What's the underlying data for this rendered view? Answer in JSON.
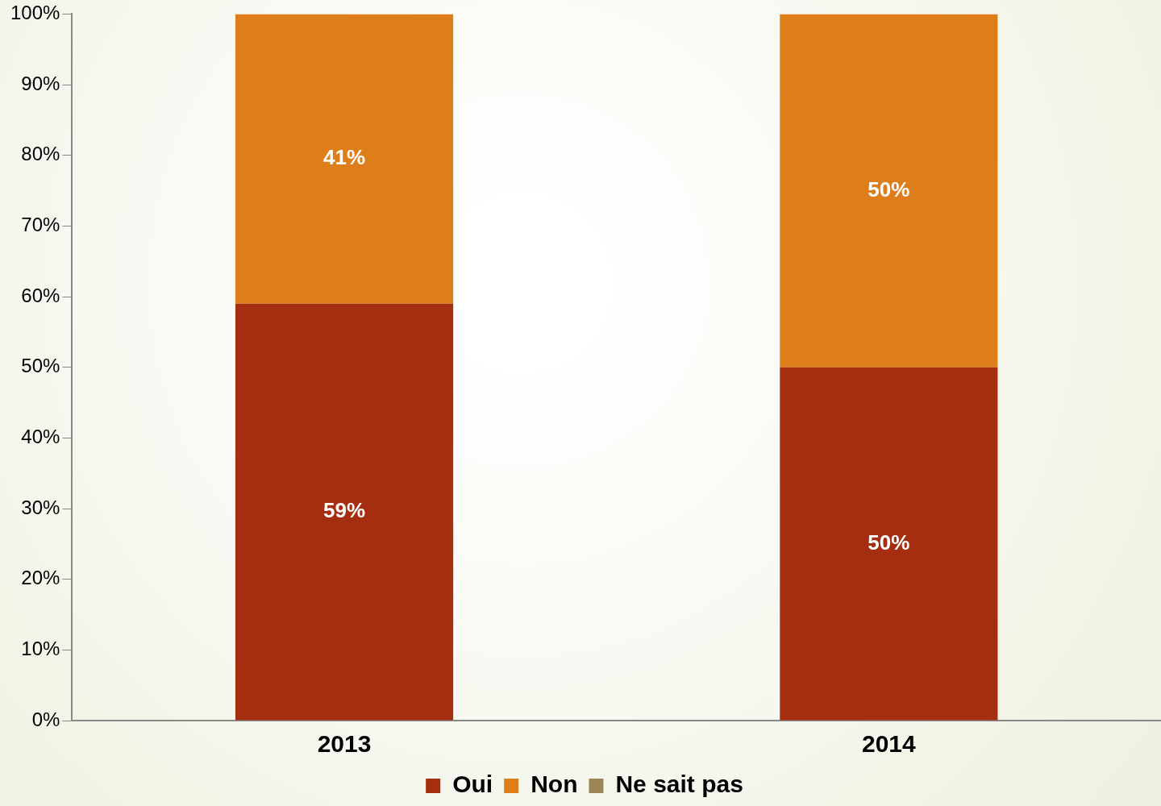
{
  "chart_data": {
    "type": "bar",
    "stacked": true,
    "categories": [
      "2013",
      "2014"
    ],
    "series": [
      {
        "name": "Oui",
        "color": "#a52e10",
        "values": [
          59,
          50
        ],
        "value_labels": [
          "59%",
          "50%"
        ]
      },
      {
        "name": "Non",
        "color": "#de7e1a",
        "values": [
          41,
          50
        ],
        "value_labels": [
          "41%",
          "50%"
        ]
      },
      {
        "name": "Ne sait pas",
        "color": "#9c8454",
        "values": [
          0,
          0
        ],
        "value_labels": [
          null,
          null
        ]
      }
    ],
    "ylim": [
      0,
      100
    ],
    "yticks": [
      {
        "value": 0,
        "label": "0%"
      },
      {
        "value": 10,
        "label": "10%"
      },
      {
        "value": 20,
        "label": "20%"
      },
      {
        "value": 30,
        "label": "30%"
      },
      {
        "value": 40,
        "label": "40%"
      },
      {
        "value": 50,
        "label": "50%"
      },
      {
        "value": 60,
        "label": "60%"
      },
      {
        "value": 70,
        "label": "70%"
      },
      {
        "value": 80,
        "label": "80%"
      },
      {
        "value": 90,
        "label": "90%"
      },
      {
        "value": 100,
        "label": "100%"
      }
    ],
    "grid": false,
    "legend": "bottom"
  }
}
